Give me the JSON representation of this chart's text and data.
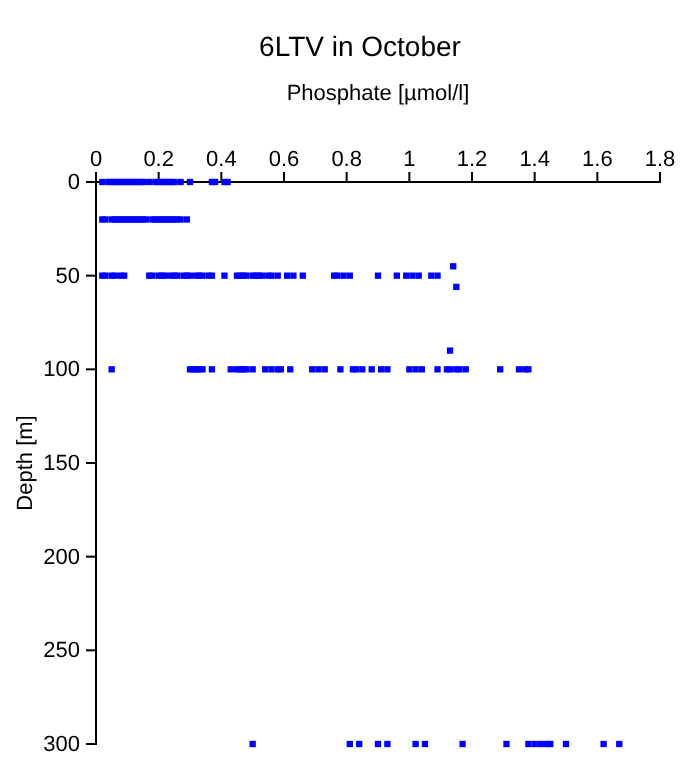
{
  "chart_data": {
    "type": "scatter",
    "title": "6LTV in October",
    "xlabel": "Phosphate [µmol/l]",
    "ylabel": "Depth [m]",
    "xlim": [
      0,
      1.8
    ],
    "xticks": [
      0,
      0.2,
      0.4,
      0.6,
      0.8,
      1,
      1.2,
      1.4,
      1.6,
      1.8
    ],
    "ylim": [
      300,
      0
    ],
    "yticks": [
      0,
      50,
      100,
      150,
      200,
      250,
      300
    ],
    "marker": "square",
    "series": [
      {
        "color": "#0000ff",
        "x": [
          0.02,
          0.04,
          0.05,
          0.06,
          0.07,
          0.08,
          0.09,
          0.1,
          0.11,
          0.12,
          0.13,
          0.14,
          0.15,
          0.17,
          0.19,
          0.2,
          0.21,
          0.22,
          0.23,
          0.24,
          0.25,
          0.27,
          0.3,
          0.37,
          0.38,
          0.41,
          0.42,
          0.02,
          0.03,
          0.05,
          0.06,
          0.07,
          0.08,
          0.09,
          0.1,
          0.11,
          0.12,
          0.13,
          0.14,
          0.15,
          0.16,
          0.18,
          0.19,
          0.2,
          0.21,
          0.22,
          0.23,
          0.24,
          0.25,
          0.26,
          0.27,
          0.29,
          0.02,
          0.03,
          0.05,
          0.06,
          0.08,
          0.09,
          0.17,
          0.18,
          0.2,
          0.21,
          0.22,
          0.24,
          0.25,
          0.26,
          0.28,
          0.29,
          0.3,
          0.32,
          0.33,
          0.34,
          0.36,
          0.37,
          0.41,
          0.45,
          0.46,
          0.47,
          0.48,
          0.5,
          0.51,
          0.52,
          0.53,
          0.55,
          0.56,
          0.58,
          0.61,
          0.63,
          0.66,
          0.76,
          0.77,
          0.79,
          0.81,
          0.9,
          0.96,
          0.99,
          1.01,
          1.03,
          1.07,
          1.09,
          0.05,
          0.3,
          0.31,
          0.32,
          0.33,
          0.34,
          0.37,
          0.43,
          0.45,
          0.46,
          0.47,
          0.48,
          0.5,
          0.54,
          0.56,
          0.58,
          0.59,
          0.62,
          0.69,
          0.71,
          0.73,
          0.78,
          0.82,
          0.83,
          0.85,
          0.88,
          0.91,
          0.93,
          1.0,
          1.02,
          1.04,
          1.09,
          1.12,
          1.13,
          1.15,
          1.16,
          1.18,
          1.29,
          1.35,
          1.37,
          1.38,
          0.5,
          0.81,
          0.84,
          0.9,
          0.93,
          1.02,
          1.05,
          1.17,
          1.31,
          1.38,
          1.4,
          1.42,
          1.44,
          1.45,
          1.5,
          1.62,
          1.67,
          1.14,
          1.15,
          1.13
        ],
        "values": [
          0,
          0,
          0,
          0,
          0,
          0,
          0,
          0,
          0,
          0,
          0,
          0,
          0,
          0,
          0,
          0,
          0,
          0,
          0,
          0,
          0,
          0,
          0,
          0,
          0,
          0,
          0,
          20,
          20,
          20,
          20,
          20,
          20,
          20,
          20,
          20,
          20,
          20,
          20,
          20,
          20,
          20,
          20,
          20,
          20,
          20,
          20,
          20,
          20,
          20,
          20,
          20,
          50,
          50,
          50,
          50,
          50,
          50,
          50,
          50,
          50,
          50,
          50,
          50,
          50,
          50,
          50,
          50,
          50,
          50,
          50,
          50,
          50,
          50,
          50,
          50,
          50,
          50,
          50,
          50,
          50,
          50,
          50,
          50,
          50,
          50,
          50,
          50,
          50,
          50,
          50,
          50,
          50,
          50,
          50,
          50,
          50,
          50,
          50,
          50,
          100,
          100,
          100,
          100,
          100,
          100,
          100,
          100,
          100,
          100,
          100,
          100,
          100,
          100,
          100,
          100,
          100,
          100,
          100,
          100,
          100,
          100,
          100,
          100,
          100,
          100,
          100,
          100,
          100,
          100,
          100,
          100,
          100,
          100,
          100,
          100,
          100,
          100,
          100,
          100,
          100,
          300,
          300,
          300,
          300,
          300,
          300,
          300,
          300,
          300,
          300,
          300,
          300,
          300,
          300,
          300,
          300,
          300,
          45,
          56,
          90
        ]
      }
    ]
  }
}
